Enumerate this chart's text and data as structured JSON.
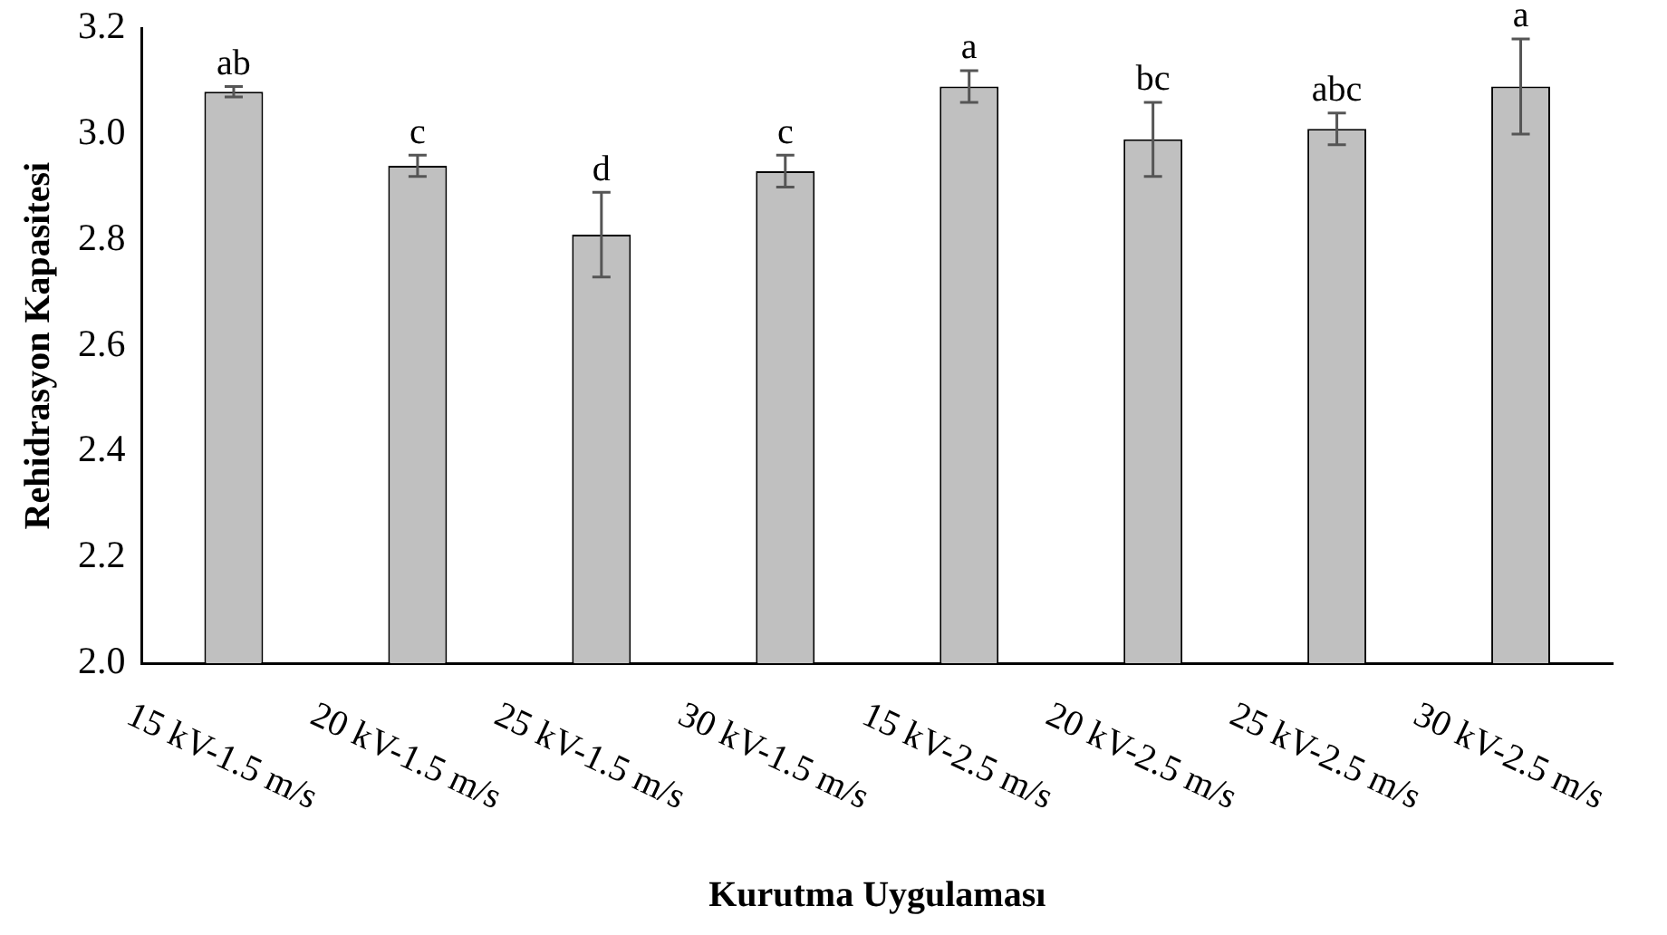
{
  "chart_data": {
    "type": "bar",
    "xlabel": "Kurutma Uygulaması",
    "ylabel": "Rehidrasyon Kapasitesi",
    "categories": [
      "15 kV-1.5 m/s",
      "20 kV-1.5 m/s",
      "25 kV-1.5 m/s",
      "30 kV-1.5 m/s",
      "15 kV-2.5 m/s",
      "20 kV-2.5 m/s",
      "25 kV-2.5 m/s",
      "30 kV-2.5 m/s"
    ],
    "values": [
      3.08,
      2.94,
      2.81,
      2.93,
      3.09,
      2.99,
      3.01,
      3.09
    ],
    "errors": [
      0.01,
      0.02,
      0.08,
      0.03,
      0.03,
      0.07,
      0.03,
      0.09
    ],
    "color": "#c0c0c0",
    "ylim": [
      2.0,
      3.2
    ],
    "yticks": [
      {
        "value": 2,
        "label": "2.0"
      },
      2.2,
      2.4,
      2.6,
      2.8,
      {
        "value": 3,
        "label": "3.0"
      },
      3.2
    ],
    "grid": false,
    "legend": false,
    "annotations": [
      {
        "text": "ab",
        "x": "15 kV-1.5 m/s",
        "y": 3.09
      },
      {
        "text": "c",
        "x": "20 kV-1.5 m/s",
        "y": 2.96
      },
      {
        "text": "d",
        "x": "25 kV-1.5 m/s",
        "y": 2.89
      },
      {
        "text": "c",
        "x": "30 kV-1.5 m/s",
        "y": 2.96
      },
      {
        "text": "a",
        "x": "15 kV-2.5 m/s",
        "y": 3.12
      },
      {
        "text": "bc",
        "x": "20 kV-2.5 m/s",
        "y": 3.06
      },
      {
        "text": "abc",
        "x": "25 kV-2.5 m/s",
        "y": 3.04
      },
      {
        "text": "a",
        "x": "30 kV-2.5 m/s",
        "y": 3.18
      }
    ]
  }
}
